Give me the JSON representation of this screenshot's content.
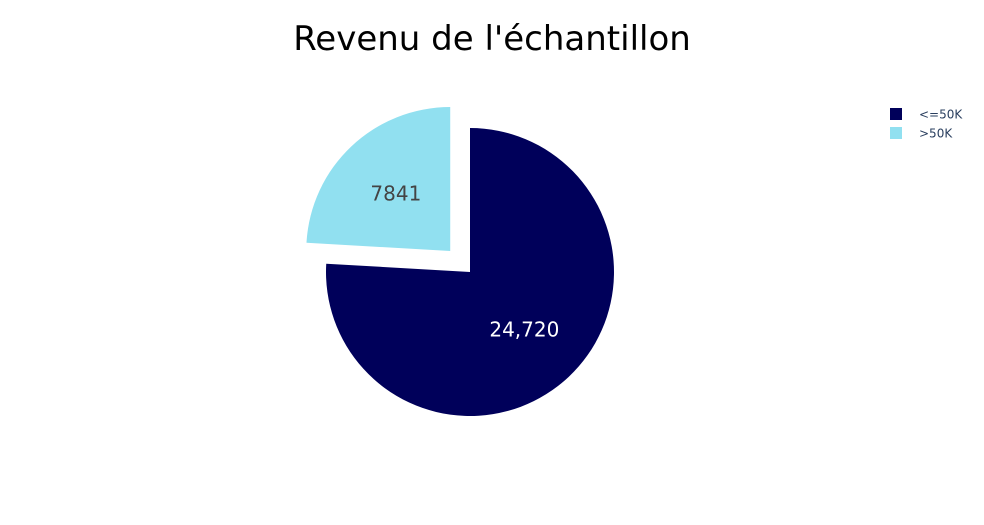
{
  "chart_data": {
    "type": "pie",
    "title": "Revenu de l'échantillon",
    "labels": [
      "<=50K",
      ">50K"
    ],
    "values": [
      24720,
      7841
    ],
    "value_labels": [
      "24,720",
      "7841"
    ],
    "colors": [
      "#00005a",
      "#91e0f0"
    ],
    "text_colors": [
      "#ffffff",
      "#444444"
    ],
    "pull": [
      0,
      0.2
    ],
    "start_angle_deg": 90,
    "direction": "clockwise",
    "legend_position": "top-right"
  }
}
